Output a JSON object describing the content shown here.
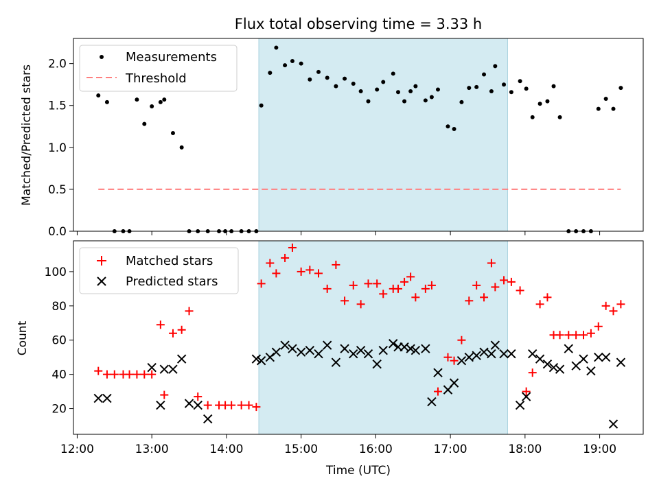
{
  "chart_data": [
    {
      "type": "scatter",
      "title": "Flux total observing time = 3.33 h",
      "ylabel": "Matched/Predicted stars",
      "xlabel": "",
      "ylim": [
        0,
        2.3
      ],
      "xlim": [
        "11:57",
        "19:35"
      ],
      "yticks": [
        "0.0",
        "0.5",
        "1.0",
        "1.5",
        "2.0"
      ],
      "legend_position": "top-left",
      "shaded_interval": {
        "start": "14:26",
        "end": "17:46",
        "color": "#d4ebf2"
      },
      "series": [
        {
          "name": "Measurements",
          "marker": "dot",
          "color": "#000000",
          "x": [
            "12:17",
            "12:24",
            "12:30",
            "12:37",
            "12:42",
            "12:48",
            "12:54",
            "13:00",
            "13:07",
            "13:10",
            "13:17",
            "13:24",
            "13:30",
            "13:37",
            "13:45",
            "13:54",
            "13:59",
            "14:04",
            "14:12",
            "14:18",
            "14:24",
            "14:28",
            "14:35",
            "14:40",
            "14:47",
            "14:53",
            "15:00",
            "15:07",
            "15:14",
            "15:21",
            "15:28",
            "15:35",
            "15:42",
            "15:48",
            "15:54",
            "16:01",
            "16:06",
            "16:14",
            "16:18",
            "16:23",
            "16:28",
            "16:32",
            "16:40",
            "16:45",
            "16:50",
            "16:58",
            "17:03",
            "17:09",
            "17:15",
            "17:21",
            "17:27",
            "17:33",
            "17:36",
            "17:43",
            "17:49",
            "17:56",
            "18:01",
            "18:06",
            "18:12",
            "18:18",
            "18:23",
            "18:28",
            "18:35",
            "18:41",
            "18:47",
            "18:53",
            "18:59",
            "19:05",
            "19:11",
            "19:17"
          ],
          "y": [
            1.62,
            1.54,
            0,
            0,
            0,
            1.57,
            1.28,
            1.49,
            1.54,
            1.57,
            1.17,
            1.0,
            0,
            0,
            0,
            0,
            0,
            0,
            0,
            0,
            0,
            1.5,
            1.89,
            2.19,
            1.98,
            2.03,
            2.0,
            1.81,
            1.9,
            1.83,
            1.73,
            1.82,
            1.76,
            1.67,
            1.55,
            1.69,
            1.78,
            1.88,
            1.66,
            1.55,
            1.67,
            1.73,
            1.56,
            1.6,
            1.69,
            1.25,
            1.22,
            1.54,
            1.71,
            1.72,
            1.87,
            1.67,
            1.97,
            1.75,
            1.66,
            1.79,
            1.7,
            1.36,
            1.52,
            1.55,
            1.73,
            1.36,
            0,
            0,
            0,
            0,
            1.46,
            1.58,
            1.46,
            1.71
          ],
          "y_note": "values read from the rendered markers"
        },
        {
          "name": "Threshold",
          "marker": "dashed-line",
          "color": "#ff7f7f",
          "x": [
            "12:17",
            "19:17"
          ],
          "y": [
            0.5,
            0.5
          ]
        }
      ]
    },
    {
      "type": "scatter",
      "title": "",
      "ylabel": "Count",
      "xlabel": "Time (UTC)",
      "ylim": [
        5,
        118
      ],
      "xlim": [
        "11:57",
        "19:35"
      ],
      "yticks": [
        "20",
        "40",
        "60",
        "80",
        "100"
      ],
      "xticks": [
        "12:00",
        "13:00",
        "14:00",
        "15:00",
        "16:00",
        "17:00",
        "18:00",
        "19:00"
      ],
      "legend_position": "top-left",
      "shaded_interval": {
        "start": "14:26",
        "end": "17:46",
        "color": "#d4ebf2"
      },
      "series": [
        {
          "name": "Matched stars",
          "marker": "plus",
          "color": "#ff0000",
          "x": [
            "12:17",
            "12:24",
            "12:30",
            "12:37",
            "12:42",
            "12:48",
            "12:54",
            "13:00",
            "13:07",
            "13:10",
            "13:17",
            "13:24",
            "13:30",
            "13:37",
            "13:45",
            "13:54",
            "13:59",
            "14:04",
            "14:12",
            "14:18",
            "14:24",
            "14:28",
            "14:35",
            "14:40",
            "14:47",
            "14:53",
            "15:00",
            "15:07",
            "15:14",
            "15:21",
            "15:28",
            "15:35",
            "15:42",
            "15:48",
            "15:54",
            "16:01",
            "16:06",
            "16:14",
            "16:18",
            "16:23",
            "16:28",
            "16:32",
            "16:40",
            "16:45",
            "16:50",
            "16:58",
            "17:03",
            "17:09",
            "17:15",
            "17:21",
            "17:27",
            "17:33",
            "17:36",
            "17:43",
            "17:49",
            "17:56",
            "18:01",
            "18:06",
            "18:12",
            "18:18",
            "18:23",
            "18:28",
            "18:35",
            "18:41",
            "18:47",
            "18:53",
            "18:59",
            "19:05",
            "19:11",
            "19:17"
          ],
          "y": [
            42,
            40,
            40,
            40,
            40,
            40,
            40,
            40,
            69,
            28,
            64,
            66,
            77,
            27,
            22,
            22,
            22,
            22,
            22,
            22,
            21,
            93,
            105,
            99,
            108,
            114,
            100,
            101,
            99,
            90,
            104,
            83,
            92,
            81,
            93,
            93,
            87,
            90,
            90,
            94,
            97,
            85,
            90,
            92,
            30,
            50,
            48,
            60,
            83,
            92,
            85,
            105,
            91,
            95,
            94,
            89,
            30,
            41,
            81,
            85,
            63,
            63,
            63,
            63,
            63,
            64,
            68,
            80,
            77,
            81
          ],
          "y_note": "values read from the rendered markers"
        },
        {
          "name": "Predicted stars",
          "marker": "x",
          "color": "#000000",
          "x": [
            "12:17",
            "12:24",
            "13:00",
            "13:07",
            "13:10",
            "13:17",
            "13:24",
            "13:30",
            "13:37",
            "13:45",
            "14:24",
            "14:28",
            "14:35",
            "14:40",
            "14:47",
            "14:53",
            "15:00",
            "15:07",
            "15:14",
            "15:21",
            "15:28",
            "15:35",
            "15:42",
            "15:48",
            "15:54",
            "16:01",
            "16:06",
            "16:14",
            "16:18",
            "16:23",
            "16:28",
            "16:32",
            "16:40",
            "16:45",
            "16:50",
            "16:58",
            "17:03",
            "17:09",
            "17:15",
            "17:21",
            "17:27",
            "17:33",
            "17:36",
            "17:43",
            "17:49",
            "17:56",
            "18:01",
            "18:06",
            "18:12",
            "18:18",
            "18:23",
            "18:28",
            "18:35",
            "18:41",
            "18:47",
            "18:53",
            "18:59",
            "19:05",
            "19:11",
            "19:17"
          ],
          "y": [
            26,
            26,
            44,
            22,
            43,
            43,
            49,
            23,
            22,
            14,
            49,
            48,
            50,
            53,
            57,
            55,
            53,
            54,
            52,
            57,
            47,
            55,
            52,
            54,
            52,
            46,
            54,
            58,
            56,
            56,
            55,
            54,
            55,
            24,
            41,
            31,
            35,
            48,
            50,
            51,
            53,
            52,
            57,
            52,
            52,
            22,
            27,
            52,
            49,
            46,
            44,
            43,
            55,
            45,
            49,
            42,
            50,
            50,
            11,
            47
          ],
          "y_note": "values read from the rendered markers"
        }
      ]
    }
  ]
}
